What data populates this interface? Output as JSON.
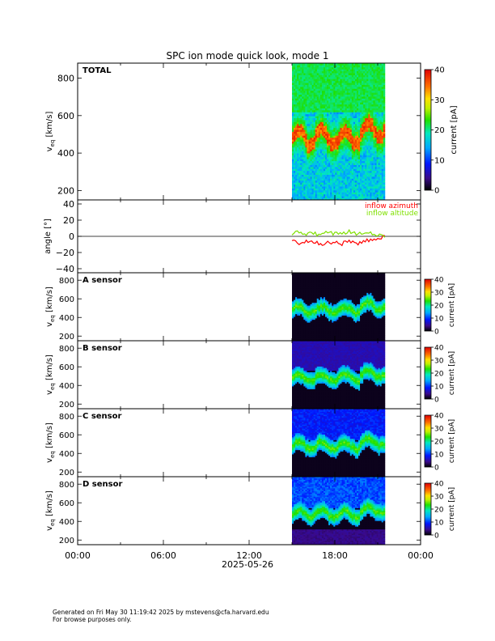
{
  "title": "SPC ion mode quick look, mode 1",
  "date_label": "2025-05-26",
  "x_ticks": [
    "00:00",
    "06:00",
    "12:00",
    "18:00",
    "00:00"
  ],
  "footer": {
    "line1": "Generated on Fri May 30 11:19:42 2025 by mstevens@cfa.harvard.edu",
    "line2": "For browse purposes only."
  },
  "colors": {
    "azimuth": "#ff0000",
    "altitude": "#7fe000",
    "background": "#ffffff",
    "axis": "#000000"
  },
  "chart_data": [
    {
      "type": "heatmap",
      "panel_label": "TOTAL",
      "ylabel_main": "v",
      "ylabel_sub": "eq",
      "ylabel_units": " [km/s]",
      "yticks": [
        "200",
        "400",
        "600",
        "800"
      ],
      "ylim": [
        150,
        880
      ],
      "data_hours": [
        15.0,
        21.5
      ],
      "colorbar": {
        "label": "current [pA]",
        "ticks": [
          "0",
          "10",
          "20",
          "30",
          "40"
        ],
        "range": [
          0,
          40
        ]
      }
    },
    {
      "type": "line",
      "ylabel": "angle [°]",
      "yticks": [
        "−40",
        "−20",
        "0",
        "20",
        "40"
      ],
      "ylim": [
        -45,
        45
      ],
      "legend": [
        "inflow azimuth",
        "inflow altitude"
      ],
      "series": [
        {
          "name": "inflow azimuth",
          "hours": [
            15.0,
            15.5,
            16.0,
            16.5,
            17.0,
            17.5,
            18.0,
            18.5,
            19.0,
            19.5,
            20.0,
            20.5,
            21.0,
            21.5
          ],
          "values": [
            -5,
            -9,
            -7,
            -6,
            -10,
            -8,
            -7,
            -9,
            -5,
            -10,
            -7,
            -4,
            -2,
            -1
          ]
        },
        {
          "name": "inflow altitude",
          "hours": [
            15.0,
            15.5,
            16.0,
            16.5,
            17.0,
            17.5,
            18.0,
            18.5,
            19.0,
            19.5,
            20.0,
            20.5,
            21.0,
            21.5
          ],
          "values": [
            3,
            6,
            2,
            4,
            1,
            5,
            3,
            2,
            6,
            4,
            3,
            5,
            2,
            1
          ]
        }
      ]
    },
    {
      "type": "heatmap",
      "panel_label": "A sensor",
      "ylabel_main": "v",
      "ylabel_sub": "eq",
      "ylabel_units": " [km/s]",
      "yticks": [
        "200",
        "400",
        "600",
        "800"
      ],
      "ylim": [
        150,
        880
      ],
      "data_hours": [
        15.0,
        21.5
      ],
      "colorbar": {
        "label": "current [pA]",
        "ticks": [
          "0",
          "10",
          "20",
          "30",
          "40"
        ],
        "range": [
          0,
          40
        ]
      }
    },
    {
      "type": "heatmap",
      "panel_label": "B sensor",
      "ylabel_main": "v",
      "ylabel_sub": "eq",
      "ylabel_units": " [km/s]",
      "yticks": [
        "200",
        "400",
        "600",
        "800"
      ],
      "ylim": [
        150,
        880
      ],
      "data_hours": [
        15.0,
        21.5
      ],
      "colorbar": {
        "label": "current [pA]",
        "ticks": [
          "0",
          "10",
          "20",
          "30",
          "40"
        ],
        "range": [
          0,
          40
        ]
      }
    },
    {
      "type": "heatmap",
      "panel_label": "C sensor",
      "ylabel_main": "v",
      "ylabel_sub": "eq",
      "ylabel_units": " [km/s]",
      "yticks": [
        "200",
        "400",
        "600",
        "800"
      ],
      "ylim": [
        150,
        880
      ],
      "data_hours": [
        15.0,
        21.5
      ],
      "colorbar": {
        "label": "current [pA]",
        "ticks": [
          "0",
          "10",
          "20",
          "30",
          "40"
        ],
        "range": [
          0,
          40
        ]
      }
    },
    {
      "type": "heatmap",
      "panel_label": "D sensor",
      "ylabel_main": "v",
      "ylabel_sub": "eq",
      "ylabel_units": " [km/s]",
      "yticks": [
        "200",
        "400",
        "600",
        "800"
      ],
      "ylim": [
        150,
        880
      ],
      "data_hours": [
        15.0,
        21.5
      ],
      "colorbar": {
        "label": "current [pA]",
        "ticks": [
          "0",
          "10",
          "20",
          "30",
          "40"
        ],
        "range": [
          0,
          40
        ]
      }
    }
  ]
}
